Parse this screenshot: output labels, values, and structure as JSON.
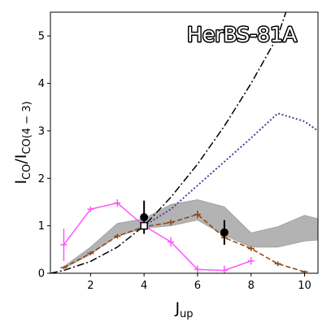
{
  "chart_data": {
    "type": "line",
    "title": "HerBS-81A",
    "xlabel_base": "J",
    "xlabel_sub": "up",
    "ylabel_num_base": "I",
    "ylabel_num_sub": "CO",
    "ylabel_den_base": "I",
    "ylabel_den_sub": "CO(4 − 3)",
    "xlim": [
      0.5,
      10.5
    ],
    "ylim": [
      0,
      5.5
    ],
    "xticks": [
      2,
      4,
      6,
      8,
      10
    ],
    "xtick_labels": [
      "2",
      "4",
      "6",
      "8",
      "10"
    ],
    "yticks": [
      0,
      1,
      2,
      3,
      4,
      5
    ],
    "ytick_labels": [
      "0",
      "1",
      "2",
      "3",
      "4",
      "5"
    ],
    "grid": false,
    "legend": "none",
    "shaded_band": {
      "color": "#b3b3b3",
      "x": [
        1,
        2,
        3,
        4,
        5,
        6,
        7,
        8,
        9,
        10,
        10.5
      ],
      "lower": [
        0.1,
        0.4,
        0.78,
        0.95,
        1.0,
        1.12,
        0.8,
        0.55,
        0.55,
        0.68,
        0.7
      ],
      "upper": [
        0.14,
        0.55,
        1.05,
        1.15,
        1.45,
        1.55,
        1.4,
        0.85,
        0.98,
        1.22,
        1.15
      ]
    },
    "series": [
      {
        "style": "dashdot",
        "color": "#000000",
        "x": [
          0.5,
          1,
          2,
          3,
          4,
          5,
          6,
          7,
          8,
          9,
          9.3
        ],
        "y": [
          0.0,
          0.06,
          0.25,
          0.55,
          1.0,
          1.6,
          2.3,
          3.1,
          4.0,
          5.0,
          5.5
        ]
      },
      {
        "style": "dotted",
        "color": "#4a3f9e",
        "x": [
          4,
          5,
          6,
          7,
          8,
          9,
          10,
          10.5
        ],
        "y": [
          1.0,
          1.35,
          1.85,
          2.35,
          2.85,
          3.37,
          3.2,
          3.0
        ]
      },
      {
        "style": "dashed-errorbars",
        "color": "#8b4513",
        "x": [
          1,
          2,
          3,
          4,
          5,
          6,
          7,
          8,
          9,
          10
        ],
        "y": [
          0.12,
          0.42,
          0.78,
          0.98,
          1.07,
          1.24,
          0.75,
          0.52,
          0.2,
          0.03
        ],
        "yerr": [
          0.03,
          0.04,
          0.05,
          0.06,
          0.06,
          0.08,
          0.06,
          0.05,
          0.05,
          0.03
        ]
      },
      {
        "style": "solid-errorbars",
        "color": "#ff55ff",
        "x": [
          1,
          2,
          3,
          4,
          5,
          6,
          7,
          8
        ],
        "y": [
          0.6,
          1.35,
          1.48,
          1.0,
          0.66,
          0.08,
          0.06,
          0.26
        ],
        "yerr": [
          0.34,
          0.06,
          0.08,
          0.15,
          0.1,
          0.08,
          0.1,
          0.08
        ]
      }
    ],
    "observed_points": [
      {
        "x": 4,
        "y": 1.18,
        "yerr": 0.35,
        "marker": "filled-circle",
        "color": "#000000"
      },
      {
        "x": 7,
        "y": 0.86,
        "yerr": 0.26,
        "marker": "filled-circle",
        "color": "#000000"
      }
    ],
    "reference_point": {
      "x": 4,
      "y": 1.0,
      "marker": "open-square",
      "color": "#000000"
    }
  }
}
